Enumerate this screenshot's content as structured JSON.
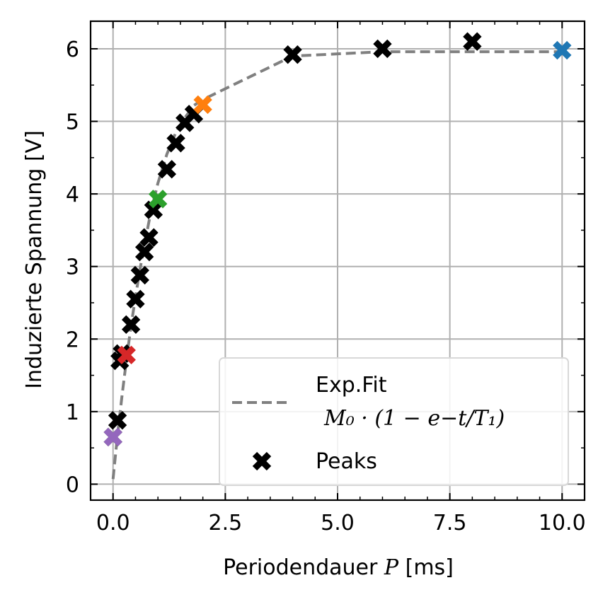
{
  "chart_data": {
    "type": "scatter",
    "title": "",
    "xlabel_prefix": "Periodendauer ",
    "xlabel_var": "P",
    "xlabel_unit": " [ms]",
    "ylabel": "Induzierte Spannung [V]",
    "xlim": [
      -0.5,
      10.5
    ],
    "ylim": [
      -0.22,
      6.38
    ],
    "xticks": [
      0.0,
      2.5,
      5.0,
      7.5,
      10.0
    ],
    "xtick_labels": [
      "0.0",
      "2.5",
      "5.0",
      "7.5",
      "10.0"
    ],
    "yticks": [
      0,
      1,
      2,
      3,
      4,
      5,
      6
    ],
    "ytick_labels": [
      "0",
      "1",
      "2",
      "3",
      "4",
      "5",
      "6"
    ],
    "grid": true,
    "legend": {
      "position": "lower-right",
      "fit_label_line1": "Exp.Fit",
      "fit_label_line2": "M₀ · (1 − e−t/T₁)",
      "peaks_label": "Peaks"
    },
    "fit_line": {
      "style": "dashed",
      "color": "#808080",
      "x": [
        0.0,
        0.1,
        0.2,
        0.3,
        0.4,
        0.5,
        0.6,
        0.7,
        0.8,
        0.9,
        1.0,
        1.2,
        1.4,
        1.6,
        1.8,
        2.0,
        4.0,
        6.0,
        8.0,
        10.0
      ],
      "y": [
        0.07,
        0.68,
        1.22,
        1.72,
        2.18,
        2.58,
        2.96,
        3.3,
        3.62,
        3.9,
        4.15,
        4.55,
        4.85,
        5.05,
        5.22,
        5.3,
        5.9,
        5.96,
        5.96,
        5.96
      ]
    },
    "series": [
      {
        "name": "Peaks",
        "marker": "x",
        "color": "#000000",
        "x": [
          0.0,
          0.1,
          0.15,
          0.2,
          0.4,
          0.5,
          0.6,
          0.7,
          0.8,
          0.9,
          1.2,
          1.4,
          1.6,
          1.8,
          4.0,
          6.0,
          8.0
        ],
        "y": [
          0.65,
          0.88,
          1.7,
          1.8,
          2.2,
          2.55,
          2.88,
          3.2,
          3.4,
          3.78,
          4.34,
          4.7,
          4.98,
          5.1,
          5.92,
          6.0,
          6.1
        ]
      }
    ],
    "highlighted_points": [
      {
        "x": 0.0,
        "y": 0.65,
        "color": "#9467bd"
      },
      {
        "x": 0.3,
        "y": 1.78,
        "color": "#d62728"
      },
      {
        "x": 1.0,
        "y": 3.93,
        "color": "#2ca02c"
      },
      {
        "x": 2.0,
        "y": 5.23,
        "color": "#ff7f0e"
      },
      {
        "x": 10.0,
        "y": 5.98,
        "color": "#1f77b4"
      }
    ]
  }
}
